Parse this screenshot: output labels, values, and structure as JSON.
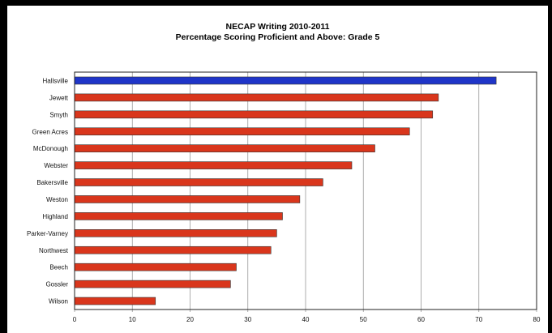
{
  "chart_data": {
    "type": "bar",
    "orientation": "horizontal",
    "title": "NECAP Writing 2010-2011",
    "subtitle": "Percentage Scoring Proficient and Above: Grade 5",
    "xlabel": "",
    "ylabel": "",
    "xlim": [
      0,
      80
    ],
    "x_ticks": [
      "0",
      "10",
      "20",
      "30",
      "40",
      "50",
      "60",
      "70",
      "80"
    ],
    "grid": "vertical",
    "highlight_color": "#1f35c8",
    "bar_color": "#d9361c",
    "categories": [
      "Hallsville",
      "Jewett",
      "Smyth",
      "Green Acres",
      "McDonough",
      "Webster",
      "Bakersville",
      "Weston",
      "Highland",
      "Parker-Varney",
      "Northwest",
      "Beech",
      "Gossler",
      "Wilson"
    ],
    "values": [
      73,
      63,
      62,
      58,
      52,
      48,
      43,
      39,
      36,
      35,
      34,
      28,
      27,
      14
    ],
    "highlighted": [
      "Hallsville"
    ]
  }
}
